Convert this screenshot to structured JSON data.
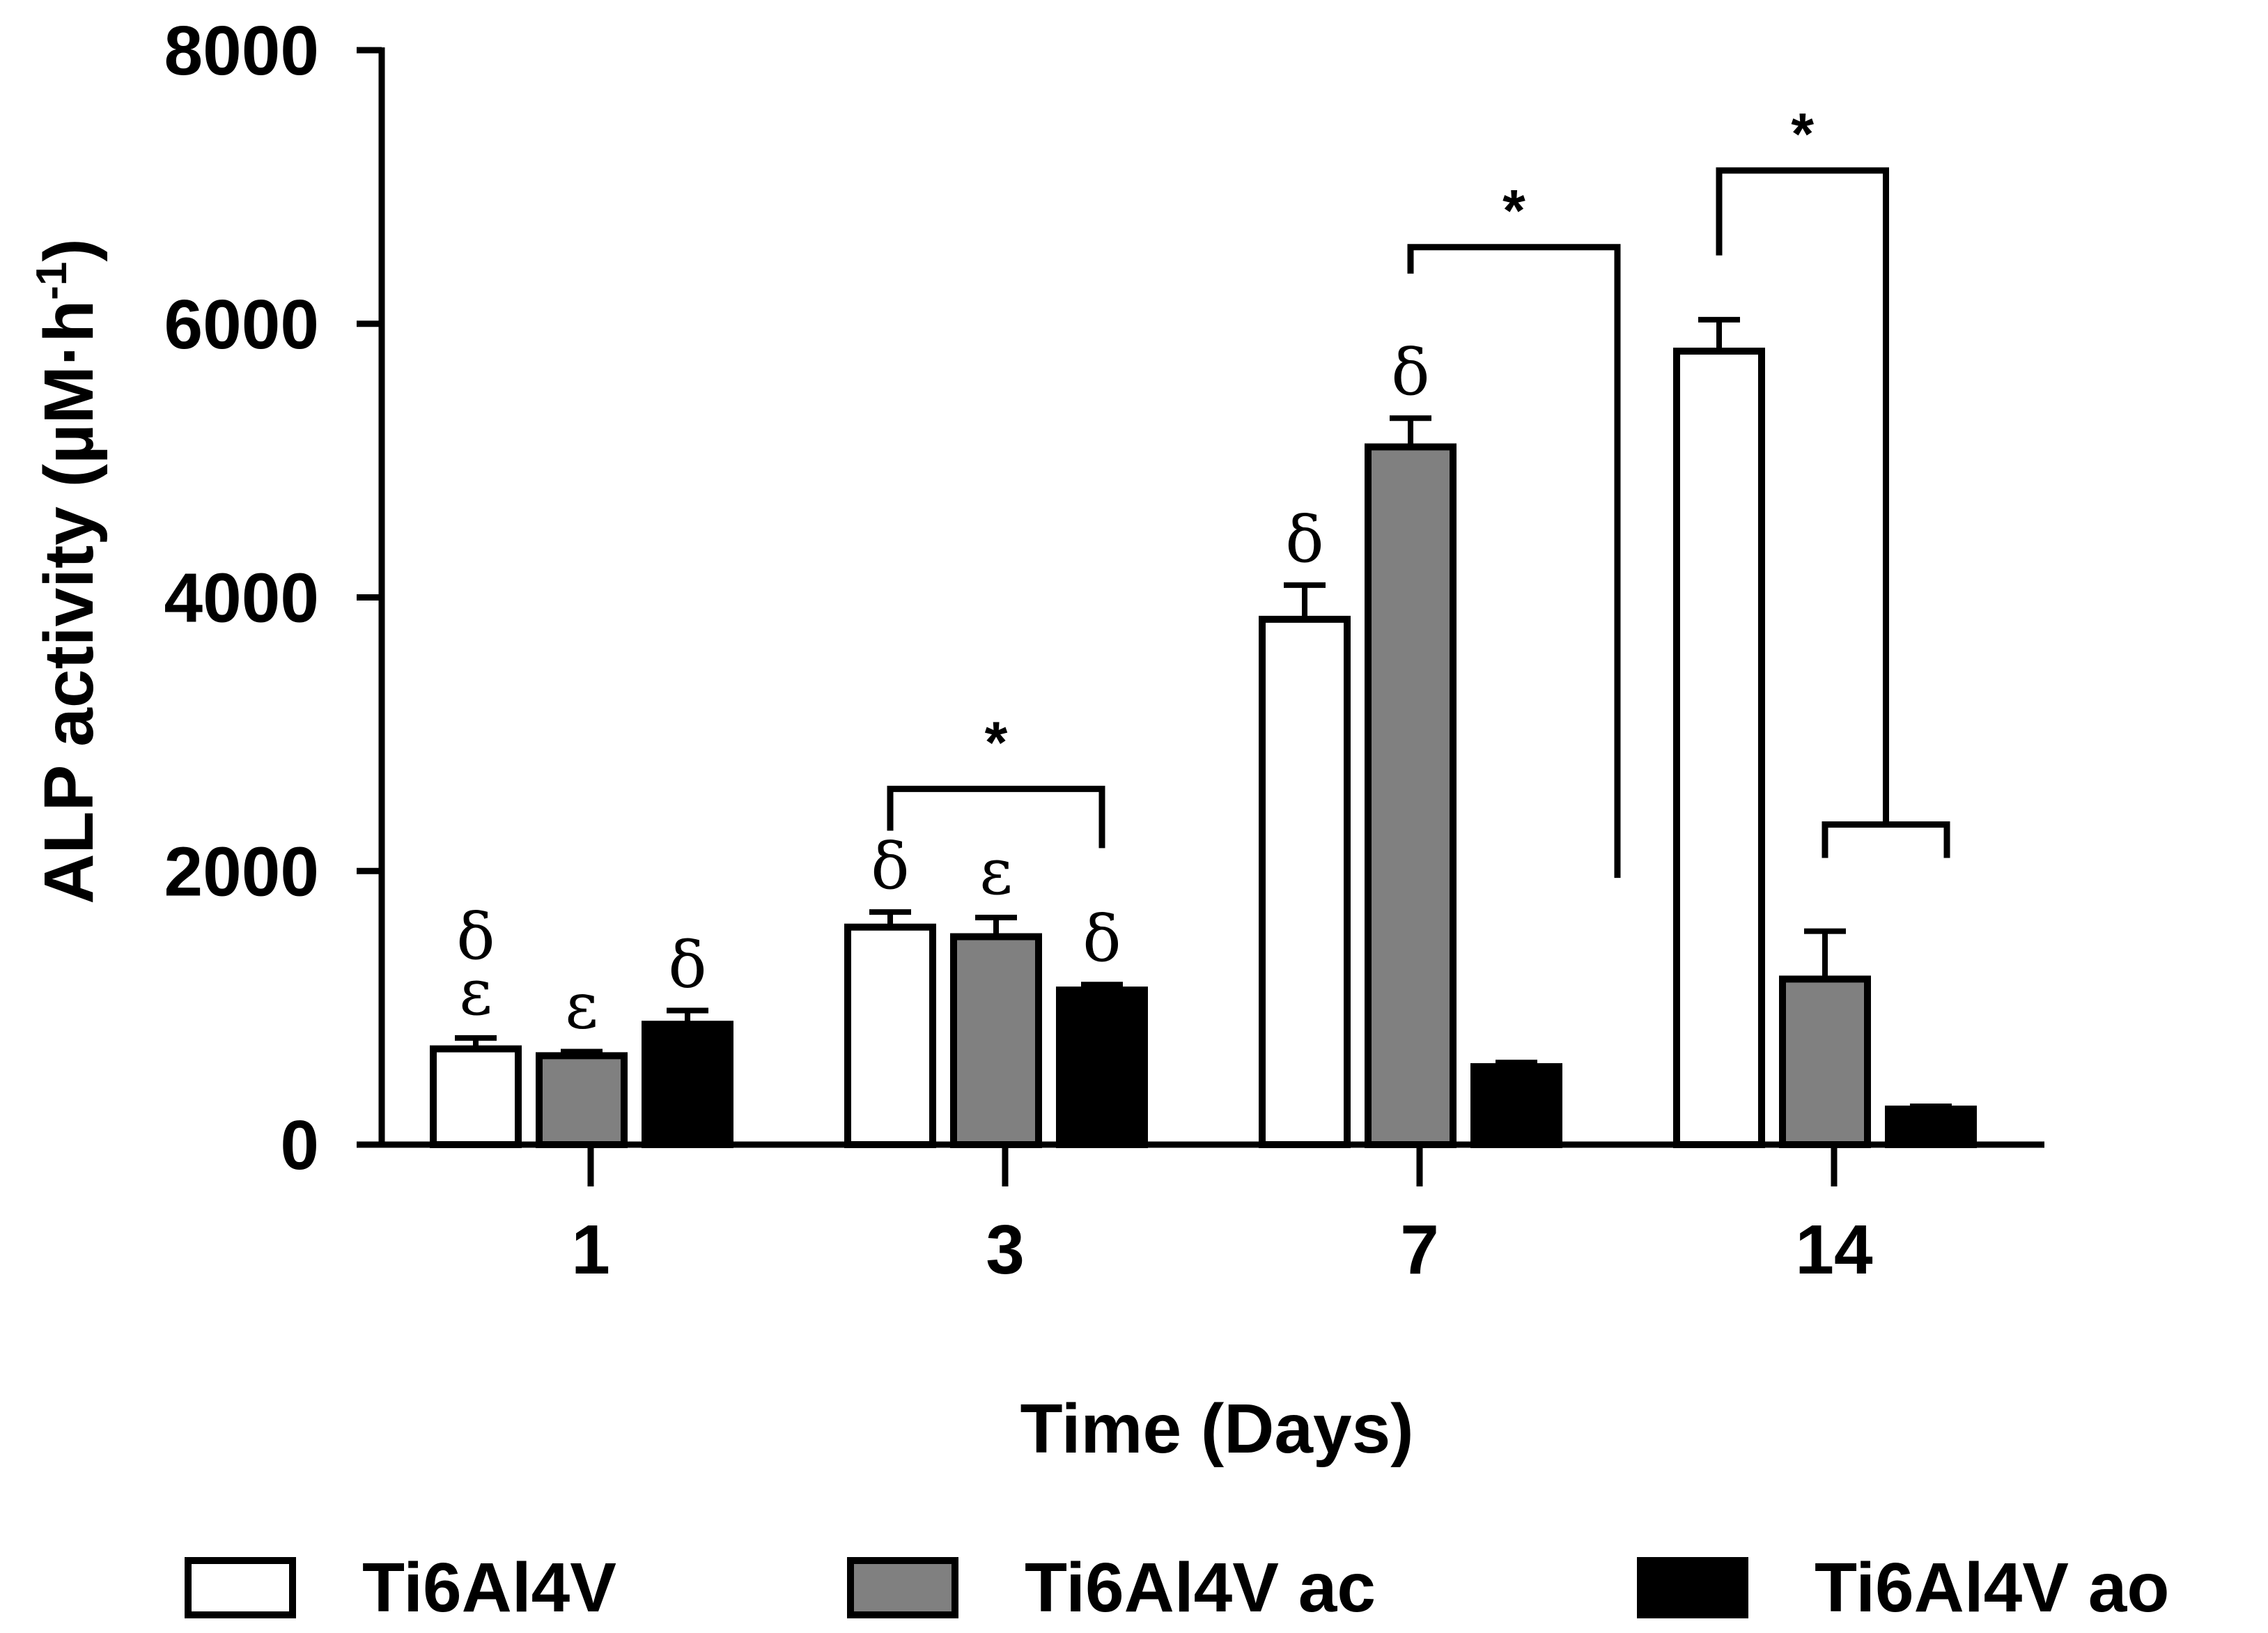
{
  "chart_data": {
    "type": "bar",
    "title": "",
    "xlabel": "Time (Days)",
    "ylabel_main": "ALP activity (µM·h",
    "ylabel_sup": "-1",
    "ylabel_close": ")",
    "ylim": [
      0,
      8000
    ],
    "yticks": [
      0,
      2000,
      4000,
      6000,
      8000
    ],
    "ytick_labels": [
      "0",
      "2000",
      "4000",
      "6000",
      "8000"
    ],
    "categories": [
      "1",
      "3",
      "7",
      "14"
    ],
    "series": [
      {
        "name": "Ti6Al4V",
        "color": "#ffffff",
        "values": [
          700,
          1590,
          3840,
          5800
        ],
        "errors": [
          80,
          110,
          250,
          230
        ]
      },
      {
        "name": "Ti6Al4V ac",
        "color": "#808080",
        "values": [
          650,
          1520,
          5100,
          1210
        ],
        "errors": [
          30,
          140,
          210,
          350
        ]
      },
      {
        "name": "Ti6Al4V ao",
        "color": "#000000",
        "values": [
          880,
          1130,
          570,
          260
        ],
        "errors": [
          100,
          40,
          30,
          20
        ]
      }
    ],
    "bar_annotations": [
      {
        "category": 0,
        "series": 0,
        "text": "δ ε"
      },
      {
        "category": 0,
        "series": 1,
        "text": "ε"
      },
      {
        "category": 0,
        "series": 2,
        "text": "δ"
      },
      {
        "category": 1,
        "series": 0,
        "text": "δ"
      },
      {
        "category": 1,
        "series": 1,
        "text": "ε"
      },
      {
        "category": 1,
        "series": 2,
        "text": "δ"
      },
      {
        "category": 2,
        "series": 0,
        "text": "δ"
      },
      {
        "category": 2,
        "series": 1,
        "text": "δ"
      }
    ],
    "significance": [
      {
        "label": "*",
        "category": 1,
        "from_series": 0,
        "to_series": 2,
        "level": 2600
      },
      {
        "label": "*",
        "category": 2,
        "from_series": 1,
        "to_series": 2,
        "level": 6560
      },
      {
        "label": "*",
        "category": 3,
        "from_series": 0,
        "to_series": "1-2",
        "level": 7120
      }
    ],
    "legend_position": "bottom"
  }
}
